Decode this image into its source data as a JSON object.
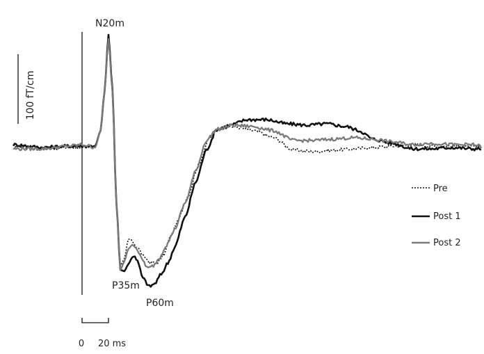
{
  "chart_data": {
    "type": "line",
    "title": "",
    "xlabel": "",
    "ylabel": "",
    "xlim": [
      -52,
      302
    ],
    "ylim": [
      -100,
      83
    ],
    "grid": false,
    "legend_position": "right",
    "scale_bars": {
      "vertical": {
        "label": "100 fT/cm",
        "value": 50
      },
      "horizontal": {
        "label_start": "0",
        "label_end": "20 ms",
        "value": 20
      }
    },
    "annotations": [
      {
        "text": "N20m",
        "x": 20,
        "y": 83
      },
      {
        "text": "P35m",
        "x": 35,
        "y": -94
      },
      {
        "text": "P60m",
        "x": 60,
        "y": -100
      }
    ],
    "series": [
      {
        "name": "Pre",
        "color": "#111111",
        "style": "dotted",
        "points": [
          [
            -52,
            1
          ],
          [
            -30,
            -1
          ],
          [
            -10,
            0
          ],
          [
            0,
            0
          ],
          [
            10,
            1
          ],
          [
            14,
            12
          ],
          [
            17,
            40
          ],
          [
            20,
            78
          ],
          [
            23,
            40
          ],
          [
            26,
            -40
          ],
          [
            29,
            -85
          ],
          [
            32,
            -80
          ],
          [
            35,
            -66
          ],
          [
            37,
            -66
          ],
          [
            39,
            -69
          ],
          [
            42,
            -72
          ],
          [
            47,
            -79
          ],
          [
            52,
            -83
          ],
          [
            57,
            -83
          ],
          [
            62,
            -77
          ],
          [
            67,
            -64
          ],
          [
            72,
            -54
          ],
          [
            80,
            -35
          ],
          [
            88,
            -13
          ],
          [
            96,
            6
          ],
          [
            104,
            14
          ],
          [
            115,
            15
          ],
          [
            130,
            12
          ],
          [
            145,
            7
          ],
          [
            160,
            -2
          ],
          [
            175,
            -3
          ],
          [
            190,
            -2
          ],
          [
            205,
            -1
          ],
          [
            220,
            0
          ],
          [
            235,
            1
          ],
          [
            250,
            2
          ],
          [
            265,
            1
          ],
          [
            280,
            1
          ],
          [
            302,
            0
          ]
        ]
      },
      {
        "name": "Post 1",
        "color": "#111111",
        "style": "solid",
        "points": [
          [
            -52,
            2
          ],
          [
            -30,
            0
          ],
          [
            -10,
            1
          ],
          [
            0,
            1
          ],
          [
            10,
            1
          ],
          [
            14,
            12
          ],
          [
            17,
            40
          ],
          [
            20,
            81
          ],
          [
            23,
            42
          ],
          [
            26,
            -40
          ],
          [
            29,
            -88
          ],
          [
            32,
            -89
          ],
          [
            35,
            -84
          ],
          [
            38,
            -79
          ],
          [
            40,
            -78
          ],
          [
            42,
            -82
          ],
          [
            46,
            -94
          ],
          [
            51,
            -100
          ],
          [
            55,
            -98
          ],
          [
            60,
            -91
          ],
          [
            65,
            -83
          ],
          [
            70,
            -72
          ],
          [
            78,
            -50
          ],
          [
            86,
            -25
          ],
          [
            94,
            -2
          ],
          [
            102,
            13
          ],
          [
            112,
            16
          ],
          [
            125,
            20
          ],
          [
            140,
            20
          ],
          [
            155,
            17
          ],
          [
            170,
            16
          ],
          [
            185,
            17
          ],
          [
            200,
            15
          ],
          [
            210,
            12
          ],
          [
            220,
            6
          ],
          [
            235,
            3
          ],
          [
            250,
            -1
          ],
          [
            265,
            -1
          ],
          [
            280,
            0
          ],
          [
            295,
            -1
          ],
          [
            302,
            -1
          ]
        ]
      },
      {
        "name": "Post 2",
        "color": "#7a7a7a",
        "style": "solid",
        "points": [
          [
            -52,
            -1
          ],
          [
            -30,
            -1
          ],
          [
            -10,
            1
          ],
          [
            0,
            2
          ],
          [
            10,
            0
          ],
          [
            14,
            12
          ],
          [
            17,
            40
          ],
          [
            20,
            78
          ],
          [
            23,
            40
          ],
          [
            26,
            -40
          ],
          [
            29,
            -88
          ],
          [
            32,
            -82
          ],
          [
            35,
            -73
          ],
          [
            38,
            -70
          ],
          [
            41,
            -72
          ],
          [
            45,
            -80
          ],
          [
            50,
            -87
          ],
          [
            54,
            -85
          ],
          [
            58,
            -80
          ],
          [
            64,
            -70
          ],
          [
            70,
            -59
          ],
          [
            78,
            -40
          ],
          [
            86,
            -17
          ],
          [
            94,
            5
          ],
          [
            102,
            13
          ],
          [
            115,
            16
          ],
          [
            130,
            15
          ],
          [
            145,
            12
          ],
          [
            160,
            5
          ],
          [
            175,
            5
          ],
          [
            190,
            6
          ],
          [
            205,
            7
          ],
          [
            220,
            6
          ],
          [
            235,
            4
          ],
          [
            250,
            2
          ],
          [
            265,
            3
          ],
          [
            280,
            2
          ],
          [
            295,
            2
          ],
          [
            302,
            1
          ]
        ]
      }
    ]
  }
}
